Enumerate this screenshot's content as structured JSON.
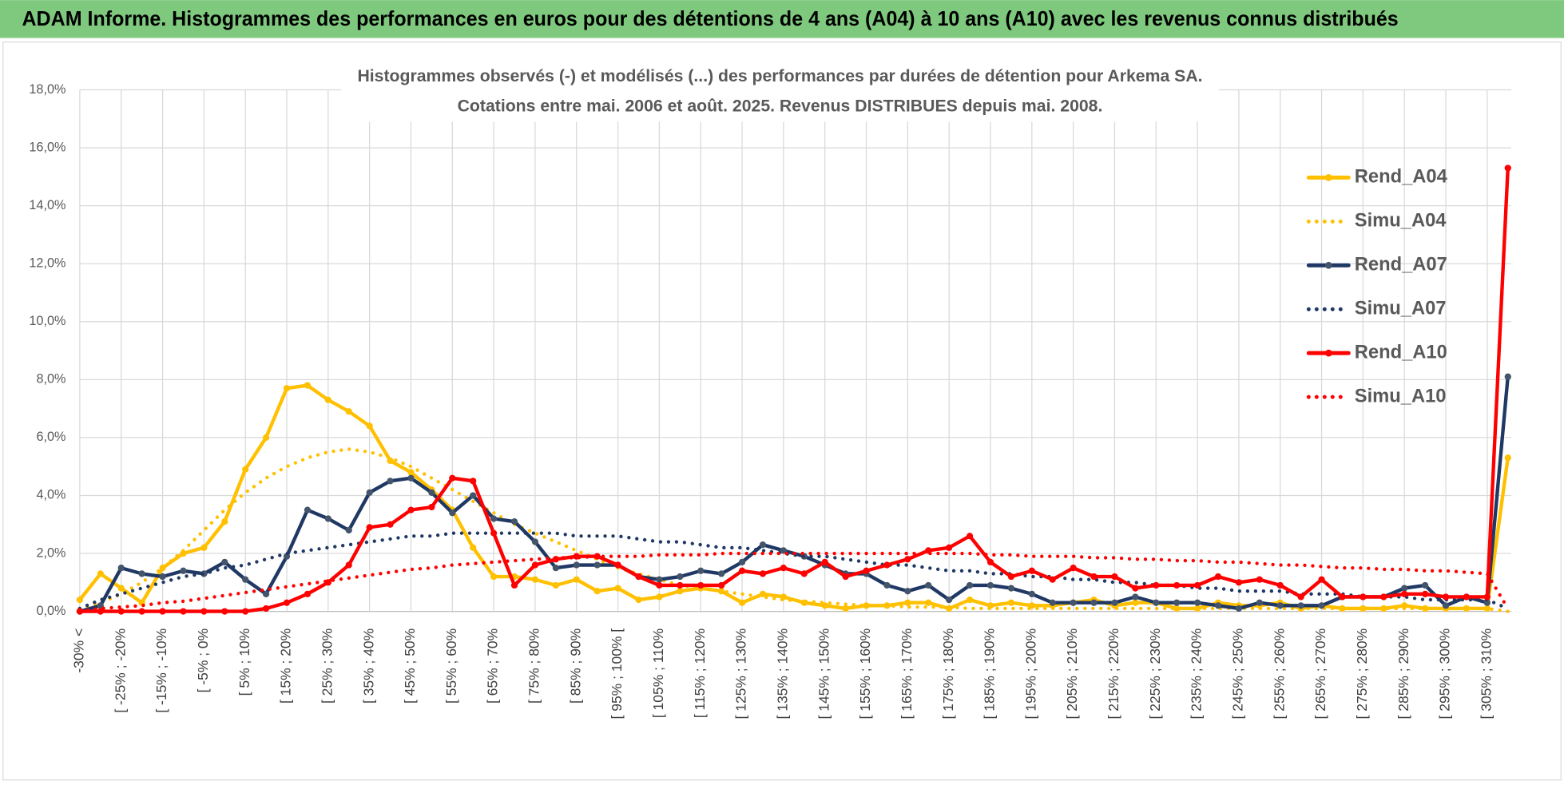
{
  "header": {
    "title": "ADAM Informe. Histogrammes des performances en euros pour des détentions de 4 ans (A04) à 10 ans (A10) avec les revenus connus distribués"
  },
  "chart_data": {
    "type": "line",
    "title": "Histogrammes observés (-) et modélisés (...) des performances par durées de détention pour Arkema SA.",
    "subtitle": "Cotations entre mai. 2006 et août. 2025. Revenus DISTRIBUES depuis mai. 2008.",
    "categories": [
      "-30% <",
      null,
      "[ -25% ; -20%",
      null,
      "[ -15% ; -10%",
      null,
      "[ -5% ; 0%",
      null,
      "[ 5% ; 10%",
      null,
      "[ 15% ; 20%",
      null,
      "[ 25% ; 30%",
      null,
      "[ 35% ; 40%",
      null,
      "[ 45% ; 50%",
      null,
      "[ 55% ; 60%",
      null,
      "[ 65% ; 70%",
      null,
      "[ 75% ; 80%",
      null,
      "[ 85% ; 90%",
      null,
      "[ 95% ; 100% [",
      null,
      "[ 105% ; 110%",
      null,
      "[ 115% ; 120%",
      null,
      "[ 125% ; 130%",
      null,
      "[ 135% ; 140%",
      null,
      "[ 145% ; 150%",
      null,
      "[ 155% ; 160%",
      null,
      "[ 165% ; 170%",
      null,
      "[ 175% ; 180%",
      null,
      "[ 185% ; 190%",
      null,
      "[ 195% ; 200%",
      null,
      "[ 205% ; 210%",
      null,
      "[ 215% ; 220%",
      null,
      "[ 225% ; 230%",
      null,
      "[ 235% ; 240%",
      null,
      "[ 245% ; 250%",
      null,
      "[ 255% ; 260%",
      null,
      "[ 265% ; 270%",
      null,
      "[ 275% ; 280%",
      null,
      "[ 285% ; 290%",
      null,
      "[ 295% ; 300%",
      null,
      "[ 305% ; 310%",
      null
    ],
    "series": [
      {
        "name": "Rend_A04",
        "color": "#ffc000",
        "style": "solid",
        "values": [
          0.4,
          1.3,
          0.8,
          0.3,
          1.5,
          2.0,
          2.2,
          3.1,
          4.9,
          6.0,
          7.7,
          7.8,
          7.3,
          6.9,
          6.4,
          5.2,
          4.8,
          4.2,
          3.5,
          2.2,
          1.2,
          1.2,
          1.1,
          0.9,
          1.1,
          0.7,
          0.8,
          0.4,
          0.5,
          0.7,
          0.8,
          0.7,
          0.3,
          0.6,
          0.5,
          0.3,
          0.2,
          0.1,
          0.2,
          0.2,
          0.3,
          0.3,
          0.1,
          0.4,
          0.2,
          0.3,
          0.2,
          0.2,
          0.3,
          0.4,
          0.2,
          0.3,
          0.3,
          0.1,
          0.1,
          0.3,
          0.2,
          0.2,
          0.3,
          0.1,
          0.2,
          0.1,
          0.1,
          0.1,
          0.2,
          0.1,
          0.1,
          0.1,
          0.1,
          5.3
        ]
      },
      {
        "name": "Simu_A04",
        "color": "#ffc000",
        "style": "dotted",
        "values": [
          0.1,
          0.3,
          0.6,
          1.0,
          1.5,
          2.1,
          2.8,
          3.5,
          4.1,
          4.6,
          5.0,
          5.3,
          5.5,
          5.6,
          5.5,
          5.3,
          5.0,
          4.6,
          4.2,
          3.8,
          3.4,
          3.0,
          2.7,
          2.4,
          2.1,
          1.8,
          1.5,
          1.3,
          1.1,
          0.9,
          0.8,
          0.7,
          0.6,
          0.5,
          0.4,
          0.35,
          0.3,
          0.25,
          0.2,
          0.2,
          0.15,
          0.15,
          0.15,
          0.1,
          0.1,
          0.1,
          0.1,
          0.1,
          0.1,
          0.1,
          0.1,
          0.1,
          0.1,
          0.1,
          0.1,
          0.1,
          0.1,
          0.1,
          0.1,
          0.1,
          0.1,
          0.1,
          0.1,
          0.1,
          0.1,
          0.1,
          0.1,
          0.1,
          0.1,
          0.0
        ]
      },
      {
        "name": "Rend_A07",
        "color": "#1f3864",
        "marker": "#44546a",
        "style": "solid",
        "values": [
          0.0,
          0.2,
          1.5,
          1.3,
          1.2,
          1.4,
          1.3,
          1.7,
          1.1,
          0.6,
          1.9,
          3.5,
          3.2,
          2.8,
          4.1,
          4.5,
          4.6,
          4.1,
          3.4,
          4.0,
          3.2,
          3.1,
          2.4,
          1.5,
          1.6,
          1.6,
          1.6,
          1.2,
          1.1,
          1.2,
          1.4,
          1.3,
          1.7,
          2.3,
          2.1,
          1.9,
          1.6,
          1.3,
          1.3,
          0.9,
          0.7,
          0.9,
          0.4,
          0.9,
          0.9,
          0.8,
          0.6,
          0.3,
          0.3,
          0.3,
          0.3,
          0.5,
          0.3,
          0.3,
          0.3,
          0.2,
          0.1,
          0.3,
          0.2,
          0.2,
          0.2,
          0.5,
          0.5,
          0.5,
          0.8,
          0.9,
          0.2,
          0.5,
          0.3,
          8.1
        ]
      },
      {
        "name": "Simu_A07",
        "color": "#1f3864",
        "style": "dotted",
        "values": [
          0.1,
          0.4,
          0.6,
          0.8,
          1.0,
          1.2,
          1.3,
          1.5,
          1.6,
          1.8,
          2.0,
          2.1,
          2.2,
          2.3,
          2.4,
          2.5,
          2.6,
          2.6,
          2.7,
          2.7,
          2.7,
          2.7,
          2.7,
          2.7,
          2.6,
          2.6,
          2.6,
          2.5,
          2.4,
          2.4,
          2.3,
          2.2,
          2.2,
          2.1,
          2.0,
          1.9,
          1.9,
          1.8,
          1.7,
          1.6,
          1.6,
          1.5,
          1.4,
          1.4,
          1.3,
          1.3,
          1.2,
          1.2,
          1.1,
          1.1,
          1.0,
          1.0,
          0.9,
          0.9,
          0.8,
          0.8,
          0.7,
          0.7,
          0.7,
          0.6,
          0.6,
          0.6,
          0.5,
          0.5,
          0.5,
          0.4,
          0.4,
          0.4,
          0.4,
          0.1
        ]
      },
      {
        "name": "Rend_A10",
        "color": "#ff0000",
        "style": "solid",
        "values": [
          0.0,
          0.0,
          0.0,
          0.0,
          0.0,
          0.0,
          0.0,
          0.0,
          0.0,
          0.1,
          0.3,
          0.6,
          1.0,
          1.6,
          2.9,
          3.0,
          3.5,
          3.6,
          4.6,
          4.5,
          2.7,
          0.9,
          1.6,
          1.8,
          1.9,
          1.9,
          1.6,
          1.2,
          0.9,
          0.9,
          0.9,
          0.9,
          1.4,
          1.3,
          1.5,
          1.3,
          1.7,
          1.2,
          1.4,
          1.6,
          1.8,
          2.1,
          2.2,
          2.6,
          1.7,
          1.2,
          1.4,
          1.1,
          1.5,
          1.2,
          1.2,
          0.8,
          0.9,
          0.9,
          0.9,
          1.2,
          1.0,
          1.1,
          0.9,
          0.5,
          1.1,
          0.5,
          0.5,
          0.5,
          0.6,
          0.6,
          0.5,
          0.5,
          0.5,
          15.3
        ]
      },
      {
        "name": "Simu_A10",
        "color": "#ff0000",
        "style": "dotted",
        "values": [
          0.0,
          0.1,
          0.15,
          0.2,
          0.3,
          0.35,
          0.45,
          0.55,
          0.65,
          0.75,
          0.85,
          0.95,
          1.05,
          1.15,
          1.25,
          1.35,
          1.45,
          1.5,
          1.6,
          1.65,
          1.7,
          1.75,
          1.8,
          1.85,
          1.85,
          1.9,
          1.9,
          1.9,
          1.95,
          1.95,
          1.95,
          2.0,
          2.0,
          2.0,
          2.0,
          2.0,
          2.0,
          2.0,
          2.0,
          2.0,
          2.0,
          2.0,
          2.0,
          2.0,
          1.95,
          1.95,
          1.9,
          1.9,
          1.9,
          1.85,
          1.85,
          1.8,
          1.8,
          1.75,
          1.75,
          1.7,
          1.7,
          1.65,
          1.6,
          1.6,
          1.55,
          1.5,
          1.5,
          1.45,
          1.45,
          1.4,
          1.4,
          1.35,
          1.3,
          0.1
        ]
      }
    ],
    "ylim": [
      0,
      18
    ],
    "yticks": [
      {
        "value": 0,
        "label": "0,0%"
      },
      {
        "value": 2,
        "label": "2,0%"
      },
      {
        "value": 4,
        "label": "4,0%"
      },
      {
        "value": 6,
        "label": "6,0%"
      },
      {
        "value": 8,
        "label": "8,0%"
      },
      {
        "value": 10,
        "label": "10,0%"
      },
      {
        "value": 12,
        "label": "12,0%"
      },
      {
        "value": 14,
        "label": "14,0%"
      },
      {
        "value": 16,
        "label": "16,0%"
      },
      {
        "value": 18,
        "label": "18,0%"
      }
    ],
    "grid": true,
    "legend": "right"
  }
}
